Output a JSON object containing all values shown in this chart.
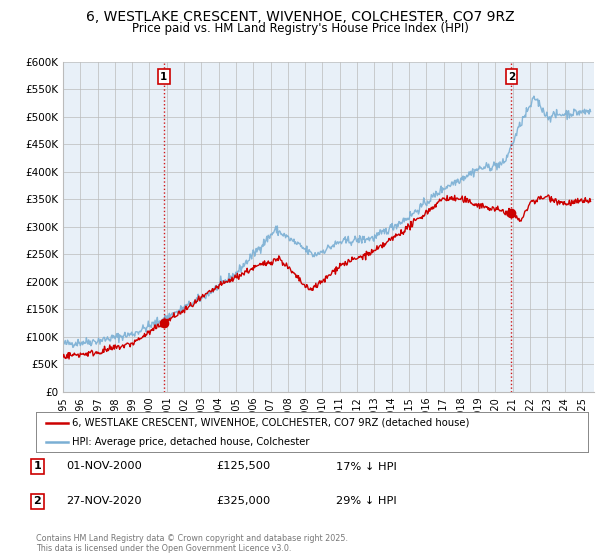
{
  "title_line1": "6, WESTLAKE CRESCENT, WIVENHOE, COLCHESTER, CO7 9RZ",
  "title_line2": "Price paid vs. HM Land Registry's House Price Index (HPI)",
  "legend_label1": "6, WESTLAKE CRESCENT, WIVENHOE, COLCHESTER, CO7 9RZ (detached house)",
  "legend_label2": "HPI: Average price, detached house, Colchester",
  "annotation1": {
    "num": "1",
    "date": "01-NOV-2000",
    "price": "£125,500",
    "note": "17% ↓ HPI"
  },
  "annotation2": {
    "num": "2",
    "date": "27-NOV-2020",
    "price": "£325,000",
    "note": "29% ↓ HPI"
  },
  "copyright": "Contains HM Land Registry data © Crown copyright and database right 2025.\nThis data is licensed under the Open Government Licence v3.0.",
  "price_color": "#cc0000",
  "hpi_color": "#7aafd4",
  "marker_vline_color": "#cc0000",
  "bg_color": "#ffffff",
  "chart_bg_color": "#e8f0f8",
  "grid_color": "#bbbbbb",
  "ylim": [
    0,
    600000
  ],
  "ytick_step": 50000,
  "sale1_year": 2000.833,
  "sale2_year": 2020.917,
  "sale1_price": 125500,
  "sale2_price": 325000
}
